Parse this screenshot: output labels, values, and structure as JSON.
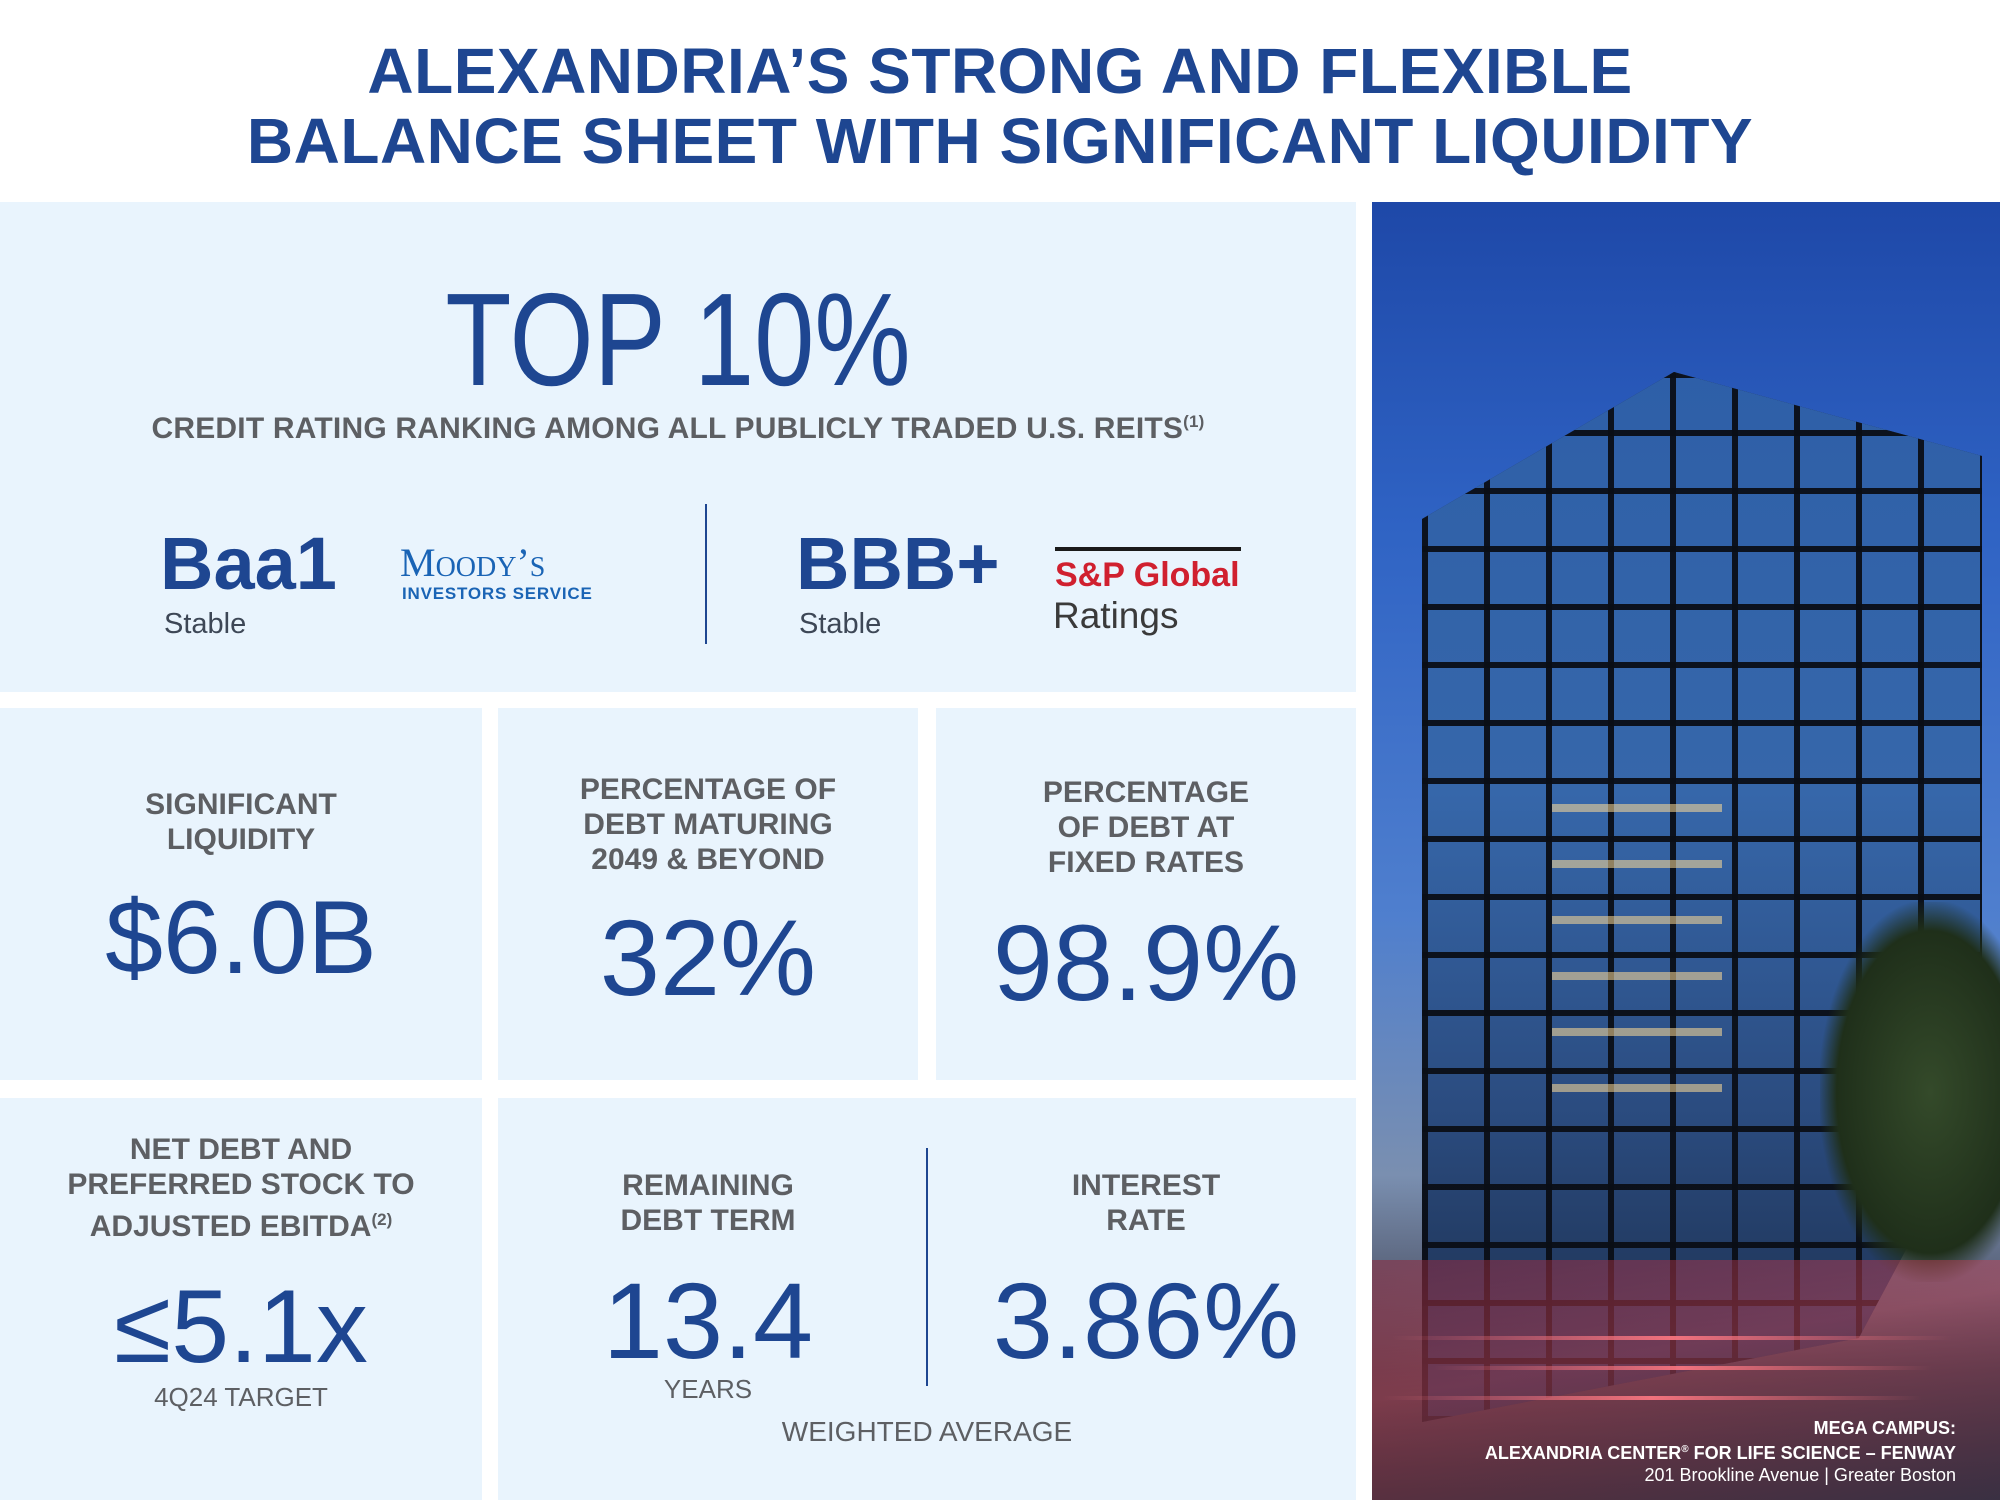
{
  "title": {
    "line1": "ALEXANDRIA’S STRONG AND FLEXIBLE",
    "line2": "BALANCE SHEET WITH SIGNIFICANT LIQUIDITY"
  },
  "credit": {
    "headline": "TOP 10%",
    "caption": "CREDIT RATING RANKING AMONG ALL PUBLICLY TRADED U.S. REITS",
    "caption_note": "(1)",
    "moodys": {
      "rating": "Baa1",
      "outlook": "Stable",
      "logo_main": "Moody’s",
      "logo_sub": "INVESTORS SERVICE"
    },
    "sp": {
      "rating": "BBB+",
      "outlook": "Stable",
      "logo_main": "S&P Global",
      "logo_sub": "Ratings"
    }
  },
  "liquidity": {
    "label_line1": "SIGNIFICANT",
    "label_line2": "LIQUIDITY",
    "value": "$6.0B"
  },
  "maturing": {
    "label_line1": "PERCENTAGE OF",
    "label_line2": "DEBT MATURING",
    "label_line3": "2049 & BEYOND",
    "value": "32%"
  },
  "fixed": {
    "label_line1": "PERCENTAGE",
    "label_line2": "OF DEBT AT",
    "label_line3": "FIXED RATES",
    "value": "98.9%"
  },
  "leverage": {
    "label_line1": "NET DEBT AND",
    "label_line2": "PREFERRED STOCK TO",
    "label_line3": "ADJUSTED EBITDA",
    "label_note": "(2)",
    "value": "≤5.1x",
    "note": "4Q24 TARGET"
  },
  "term": {
    "label_line1": "REMAINING",
    "label_line2": "DEBT TERM",
    "value": "13.4",
    "unit": "YEARS"
  },
  "rate": {
    "label_line1": "INTEREST",
    "label_line2": "RATE",
    "value": "3.86%"
  },
  "weighted_average": "WEIGHTED AVERAGE",
  "photo_caption": {
    "line1": "MEGA CAMPUS:",
    "line2_a": "ALEXANDRIA CENTER",
    "line2_mark": "®",
    "line2_b": " FOR LIFE SCIENCE – FENWAY",
    "line3": "201 Brookline Avenue | Greater Boston"
  }
}
